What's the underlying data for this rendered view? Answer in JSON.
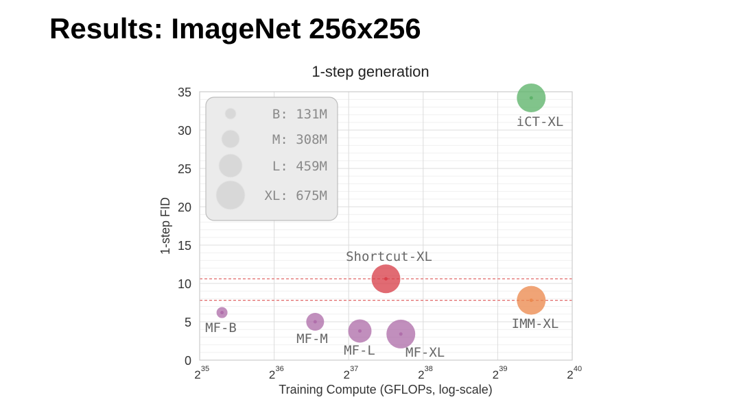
{
  "slide": {
    "title": "Results: ImageNet 256x256"
  },
  "chart_data": {
    "type": "scatter",
    "title": "1-step generation",
    "xlabel": "Training Compute (GFLOPs, log-scale)",
    "ylabel": "1-step FID",
    "x_scale": "log2",
    "xlim_exponents": [
      35,
      40
    ],
    "x_ticks": [
      {
        "base": "2",
        "exp": "35"
      },
      {
        "base": "2",
        "exp": "36"
      },
      {
        "base": "2",
        "exp": "37"
      },
      {
        "base": "2",
        "exp": "38"
      },
      {
        "base": "2",
        "exp": "39"
      },
      {
        "base": "2",
        "exp": "40"
      }
    ],
    "ylim": [
      0,
      35
    ],
    "y_ticks": [
      "0",
      "5",
      "10",
      "15",
      "20",
      "25",
      "30",
      "35"
    ],
    "grid": true,
    "legend_position": "top-left",
    "legend": [
      {
        "key": "B",
        "text": "B: 131M"
      },
      {
        "key": "M",
        "text": "M: 308M"
      },
      {
        "key": "L",
        "text": "L: 459M"
      },
      {
        "key": "XL",
        "text": "XL: 675M"
      }
    ],
    "reference_lines": [
      10.6,
      7.8
    ],
    "points": [
      {
        "label": "MF-B",
        "log2_compute": 35.3,
        "fid": 6.2,
        "size": "B",
        "color": "#b06fab"
      },
      {
        "label": "MF-M",
        "log2_compute": 36.55,
        "fid": 5.0,
        "size": "M",
        "color": "#b06fab"
      },
      {
        "label": "MF-L",
        "log2_compute": 37.15,
        "fid": 3.8,
        "size": "L",
        "color": "#b06fab"
      },
      {
        "label": "MF-XL",
        "log2_compute": 37.7,
        "fid": 3.4,
        "size": "XL",
        "color": "#b06fab"
      },
      {
        "label": "Shortcut-XL",
        "log2_compute": 37.5,
        "fid": 10.6,
        "size": "XL",
        "color": "#d9414b"
      },
      {
        "label": "IMM-XL",
        "log2_compute": 39.45,
        "fid": 7.8,
        "size": "XL",
        "color": "#ec8a4f"
      },
      {
        "label": "iCT-XL",
        "log2_compute": 39.45,
        "fid": 34.2,
        "size": "XL",
        "color": "#5db36a"
      }
    ]
  }
}
